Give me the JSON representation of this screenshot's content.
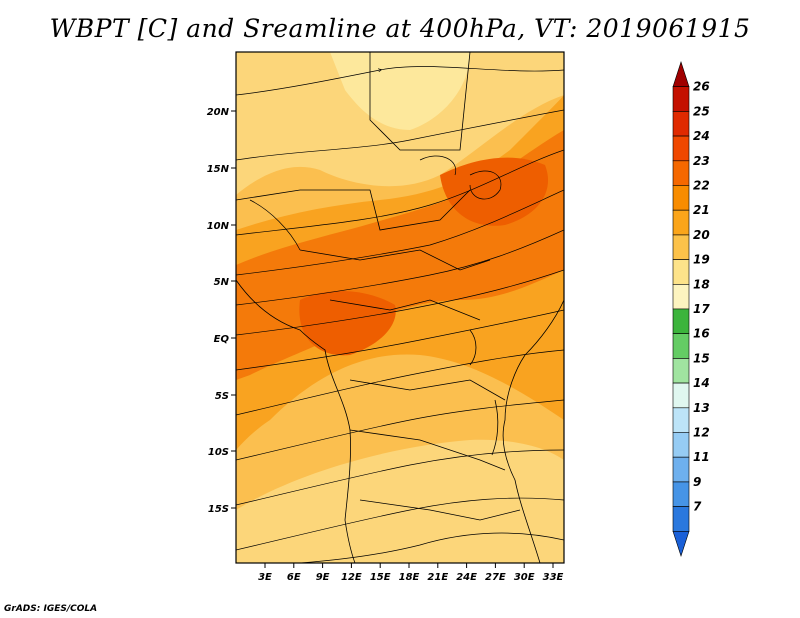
{
  "title": "WBPT [C] and Sreamline at 400hPa, VT: 2019061915",
  "credit": "GrADS: IGES/COLA",
  "map": {
    "lat_ticks": [
      "20N",
      "15N",
      "10N",
      "5N",
      "EQ",
      "5S",
      "10S",
      "15S"
    ],
    "lon_ticks": [
      "3E",
      "6E",
      "9E",
      "12E",
      "15E",
      "18E",
      "21E",
      "24E",
      "27E",
      "30E",
      "33E"
    ]
  },
  "colorbar": {
    "levels": [
      "26",
      "25",
      "24",
      "23",
      "22",
      "21",
      "20",
      "19",
      "18",
      "17",
      "16",
      "15",
      "14",
      "13",
      "12",
      "11",
      "9",
      "7"
    ],
    "colors": [
      "#a00000",
      "#c41000",
      "#e02a00",
      "#f04800",
      "#f56800",
      "#f88c00",
      "#fba51a",
      "#fcc24a",
      "#fde38a",
      "#fdf4c0",
      "#3cb43c",
      "#64cc64",
      "#a0e4a0",
      "#e0f7f0",
      "#bde4f8",
      "#96ccf4",
      "#6eb0ee",
      "#4694e6",
      "#2a78de",
      "#1a60d8"
    ]
  },
  "field_colors": {
    "cool": "#fcd67a",
    "mild": "#fbbf4f",
    "warm": "#f9a320",
    "hot": "#f47a0a",
    "hottest": "#ee5e00",
    "pale": "#fde89c"
  }
}
